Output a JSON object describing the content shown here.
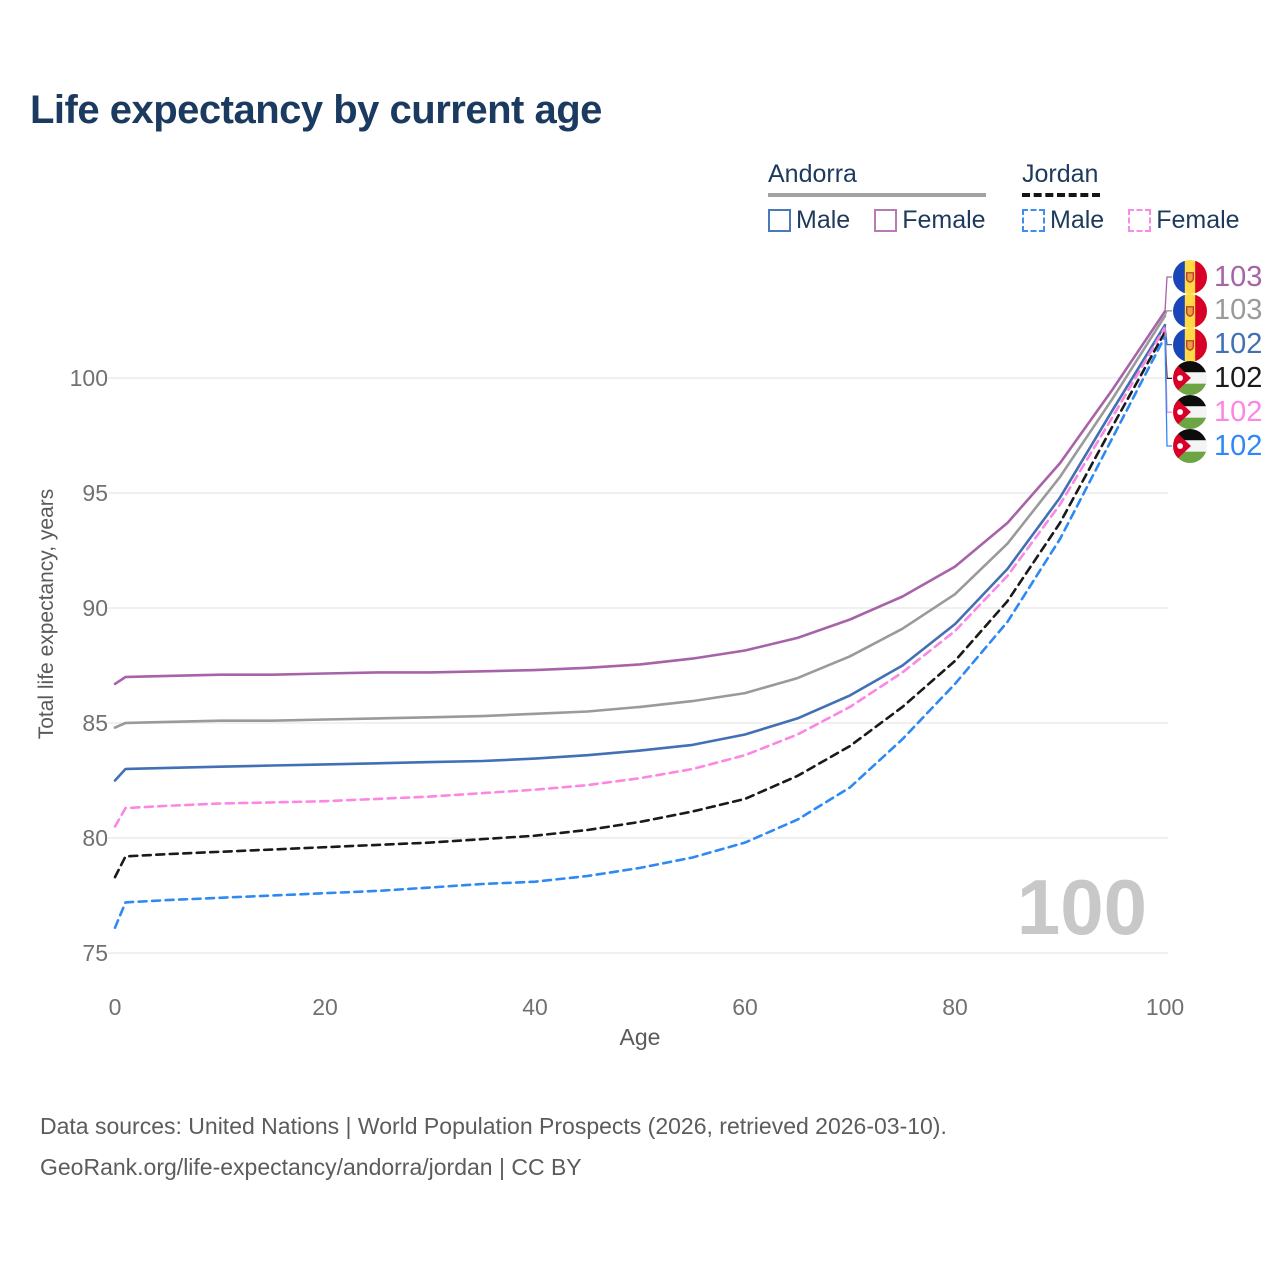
{
  "title": "Life expectancy by current age",
  "legend": {
    "groups": [
      {
        "country": "Andorra",
        "line_style": "solid",
        "underline_color": "#a2a2a2",
        "items": [
          {
            "label": "Male",
            "color": "#4a79bb",
            "dashed": false
          },
          {
            "label": "Female",
            "color": "#b77bb4",
            "dashed": false
          }
        ]
      },
      {
        "country": "Jordan",
        "line_style": "dashed",
        "underline_color": "#151515",
        "items": [
          {
            "label": "Male",
            "color": "#3f8df2",
            "dashed": true
          },
          {
            "label": "Female",
            "color": "#fb8ae4",
            "dashed": true
          }
        ]
      }
    ]
  },
  "axes": {
    "x_label": "Age",
    "y_label": "Total life expectancy, years",
    "x_ticks": [
      "0",
      "20",
      "40",
      "60",
      "80",
      "100"
    ],
    "y_ticks": [
      "75",
      "80",
      "85",
      "90",
      "95",
      "100"
    ]
  },
  "right_labels": [
    {
      "flag": "andorra",
      "value": "103",
      "color": "#a763a7"
    },
    {
      "flag": "andorra",
      "value": "103",
      "color": "#9a9a9a"
    },
    {
      "flag": "andorra",
      "value": "102",
      "color": "#4170b4"
    },
    {
      "flag": "jordan",
      "value": "102",
      "color": "#1a1a1a"
    },
    {
      "flag": "jordan",
      "value": "102",
      "color": "#fb87e3"
    },
    {
      "flag": "jordan",
      "value": "102",
      "color": "#2f89f5"
    }
  ],
  "watermark": "100",
  "footer": {
    "line1": "Data sources: United Nations | World Population Prospects (2026, retrieved 2026-03-10).",
    "line2": "GeoRank.org/life-expectancy/andorra/jordan | CC BY"
  },
  "chart_data": {
    "type": "line",
    "title": "Life expectancy by current age",
    "xlabel": "Age",
    "ylabel": "Total life expectancy, years",
    "xlim": [
      0,
      100
    ],
    "ylim": [
      74,
      104
    ],
    "xticks": [
      0,
      20,
      40,
      60,
      80,
      100
    ],
    "yticks": [
      75,
      80,
      85,
      90,
      95,
      100
    ],
    "grid": true,
    "legend_position": "top-right",
    "x": [
      0,
      1,
      5,
      10,
      15,
      20,
      25,
      30,
      35,
      40,
      45,
      50,
      55,
      60,
      65,
      70,
      75,
      80,
      85,
      90,
      95,
      100
    ],
    "series": [
      {
        "name": "Andorra Female",
        "country": "Andorra",
        "sex": "Female",
        "color": "#a763a7",
        "dashed": false,
        "end_label": "103",
        "values": [
          86.7,
          87.0,
          87.05,
          87.1,
          87.1,
          87.15,
          87.2,
          87.2,
          87.25,
          87.3,
          87.4,
          87.55,
          87.8,
          88.15,
          88.7,
          89.5,
          90.5,
          91.8,
          93.7,
          96.3,
          99.5,
          102.9
        ]
      },
      {
        "name": "Andorra Both sexes",
        "country": "Andorra",
        "sex": "All",
        "color": "#9a9a9a",
        "dashed": false,
        "end_label": "103",
        "values": [
          84.8,
          85.0,
          85.05,
          85.1,
          85.1,
          85.15,
          85.2,
          85.25,
          85.3,
          85.4,
          85.5,
          85.7,
          85.95,
          86.3,
          86.95,
          87.9,
          89.1,
          90.6,
          92.8,
          95.7,
          99.1,
          102.7
        ]
      },
      {
        "name": "Andorra Male",
        "country": "Andorra",
        "sex": "Male",
        "color": "#4170b4",
        "dashed": false,
        "end_label": "102",
        "values": [
          82.5,
          83.0,
          83.05,
          83.1,
          83.15,
          83.2,
          83.25,
          83.3,
          83.35,
          83.45,
          83.6,
          83.8,
          84.05,
          84.5,
          85.2,
          86.2,
          87.5,
          89.3,
          91.7,
          94.8,
          98.6,
          102.3
        ]
      },
      {
        "name": "Jordan Both sexes",
        "country": "Jordan",
        "sex": "All",
        "color": "#1a1a1a",
        "dashed": true,
        "end_label": "102",
        "values": [
          78.3,
          79.2,
          79.3,
          79.4,
          79.5,
          79.6,
          79.7,
          79.8,
          79.95,
          80.1,
          80.35,
          80.7,
          81.15,
          81.7,
          82.7,
          84.0,
          85.7,
          87.7,
          90.3,
          93.7,
          97.9,
          102.0
        ]
      },
      {
        "name": "Jordan Female",
        "country": "Jordan",
        "sex": "Female",
        "color": "#fb87e3",
        "dashed": true,
        "end_label": "102",
        "values": [
          80.5,
          81.3,
          81.4,
          81.5,
          81.55,
          81.6,
          81.7,
          81.8,
          81.95,
          82.1,
          82.3,
          82.6,
          83.0,
          83.6,
          84.5,
          85.7,
          87.2,
          89.0,
          91.4,
          94.5,
          98.3,
          102.2
        ]
      },
      {
        "name": "Jordan Male",
        "country": "Jordan",
        "sex": "Male",
        "color": "#2f89f5",
        "dashed": true,
        "end_label": "102",
        "values": [
          76.1,
          77.2,
          77.3,
          77.4,
          77.5,
          77.6,
          77.7,
          77.85,
          78.0,
          78.1,
          78.35,
          78.7,
          79.15,
          79.8,
          80.8,
          82.2,
          84.3,
          86.7,
          89.4,
          93.0,
          97.4,
          101.8
        ]
      }
    ]
  }
}
